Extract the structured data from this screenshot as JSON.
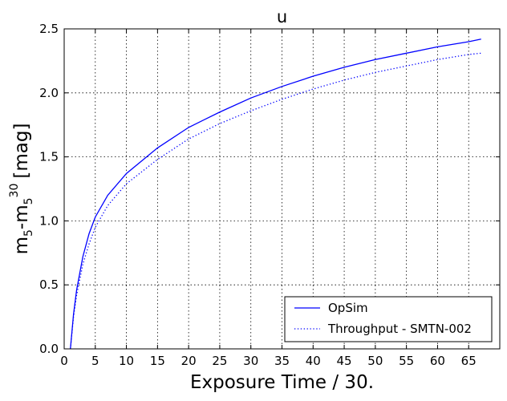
{
  "chart_data": {
    "type": "line",
    "title": "u",
    "xlabel": "Exposure Time / 30.",
    "ylabel": {
      "base": "m",
      "sub1": "5",
      "dash": "-m",
      "sub2": "5",
      "sup": "30",
      "unit": "[mag]"
    },
    "xlim": [
      0,
      70
    ],
    "ylim": [
      0.0,
      2.5
    ],
    "xticks": [
      0,
      5,
      10,
      15,
      20,
      25,
      30,
      35,
      40,
      45,
      50,
      55,
      60,
      65
    ],
    "yticks": [
      0.0,
      0.5,
      1.0,
      1.5,
      2.0,
      2.5
    ],
    "ytick_labels": [
      "0.0",
      "0.5",
      "1.0",
      "1.5",
      "2.0",
      "2.5"
    ],
    "grid": true,
    "legend_position": "lower-right",
    "series": [
      {
        "name": "OpSim",
        "style": "solid",
        "color": "#0000ff",
        "x": [
          1,
          1.5,
          2,
          3,
          4,
          5,
          7,
          10,
          15,
          20,
          25,
          30,
          35,
          40,
          45,
          50,
          55,
          60,
          65,
          67
        ],
        "y": [
          0.0,
          0.27,
          0.46,
          0.72,
          0.9,
          1.03,
          1.2,
          1.37,
          1.57,
          1.73,
          1.85,
          1.96,
          2.05,
          2.13,
          2.2,
          2.26,
          2.31,
          2.36,
          2.4,
          2.42
        ]
      },
      {
        "name": "Throughput - SMTN-002",
        "style": "dotted",
        "color": "#0000ff",
        "x": [
          1,
          1.5,
          2,
          3,
          4,
          5,
          7,
          10,
          15,
          20,
          25,
          30,
          35,
          40,
          45,
          50,
          55,
          60,
          65,
          67
        ],
        "y": [
          0.0,
          0.25,
          0.42,
          0.66,
          0.82,
          0.95,
          1.12,
          1.29,
          1.48,
          1.64,
          1.76,
          1.86,
          1.95,
          2.03,
          2.1,
          2.16,
          2.21,
          2.26,
          2.3,
          2.31
        ]
      }
    ]
  }
}
